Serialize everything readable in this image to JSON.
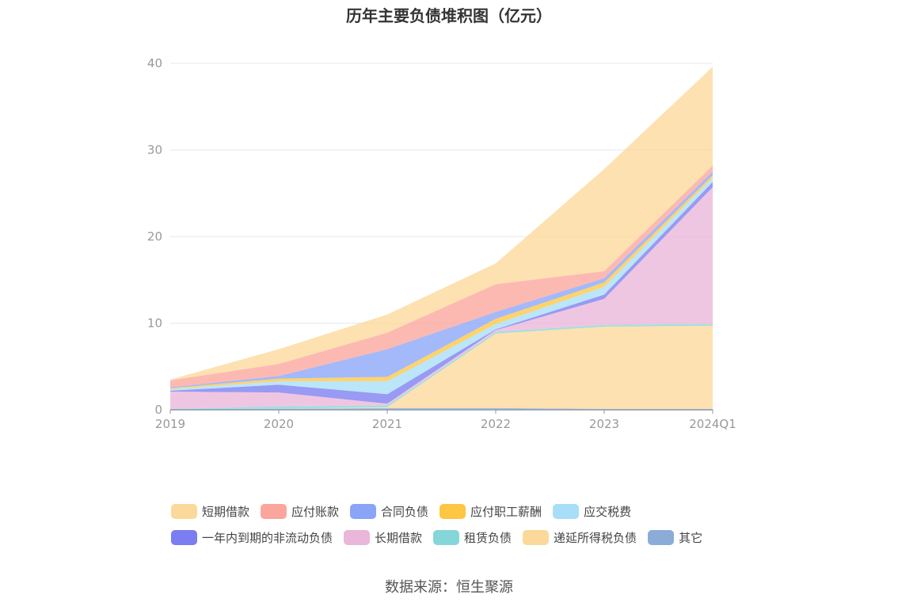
{
  "chart_data": {
    "type": "area",
    "title": "历年主要负债堆积图（亿元）",
    "categories": [
      "2019",
      "2020",
      "2021",
      "2022",
      "2023",
      "2024Q1"
    ],
    "y_ticks": [
      "0",
      "10",
      "20",
      "30",
      "40"
    ],
    "ylim": [
      0,
      40
    ],
    "stacked": true,
    "grid": true,
    "legend_position": "bottom",
    "series": [
      {
        "name": "其它",
        "color": "#8cacd8",
        "values": [
          0.1,
          0.1,
          0.2,
          0.2,
          0.1,
          0.1
        ]
      },
      {
        "name": "递延所得税负债",
        "color": "#fcd99a",
        "values": [
          0.0,
          0.0,
          0.1,
          8.6,
          9.5,
          9.6
        ]
      },
      {
        "name": "租赁负债",
        "color": "#85d6d8",
        "values": [
          0.0,
          0.3,
          0.2,
          0.2,
          0.2,
          0.2
        ]
      },
      {
        "name": "长期借款",
        "color": "#eab6d9",
        "values": [
          2.0,
          1.6,
          0.2,
          0.2,
          3.0,
          15.8
        ]
      },
      {
        "name": "一年内到期的非流动负债",
        "color": "#7b7ef0",
        "values": [
          0.1,
          0.9,
          1.1,
          0.1,
          0.5,
          0.6
        ]
      },
      {
        "name": "应交税费",
        "color": "#a8def7",
        "values": [
          0.2,
          0.4,
          1.5,
          0.6,
          0.9,
          0.5
        ]
      },
      {
        "name": "应付职工薪酬",
        "color": "#fdc744",
        "values": [
          0.1,
          0.3,
          0.5,
          0.6,
          0.5,
          0.3
        ]
      },
      {
        "name": "合同负债",
        "color": "#8aa5f7",
        "values": [
          0.1,
          0.3,
          3.2,
          0.8,
          0.5,
          0.4
        ]
      },
      {
        "name": "应付账款",
        "color": "#fba59c",
        "values": [
          0.8,
          1.4,
          1.9,
          3.2,
          0.8,
          0.7
        ]
      },
      {
        "name": "短期借款",
        "color": "#fcd99a",
        "values": [
          0.1,
          1.7,
          2.1,
          2.4,
          11.8,
          11.4
        ]
      }
    ]
  },
  "legend": {
    "rows": [
      [
        {
          "label": "短期借款",
          "color": "#fcd99a"
        },
        {
          "label": "应付账款",
          "color": "#fba59c"
        },
        {
          "label": "合同负债",
          "color": "#8aa5f7"
        },
        {
          "label": "应付职工薪酬",
          "color": "#fdc744"
        },
        {
          "label": "应交税费",
          "color": "#a8def7"
        }
      ],
      [
        {
          "label": "一年内到期的非流动负债",
          "color": "#7b7ef0"
        },
        {
          "label": "长期借款",
          "color": "#eab6d9"
        },
        {
          "label": "租赁负债",
          "color": "#85d6d8"
        },
        {
          "label": "递延所得税负债",
          "color": "#fcd99a"
        },
        {
          "label": "其它",
          "color": "#8cacd8"
        }
      ]
    ]
  },
  "source_text": "数据来源：恒生聚源"
}
